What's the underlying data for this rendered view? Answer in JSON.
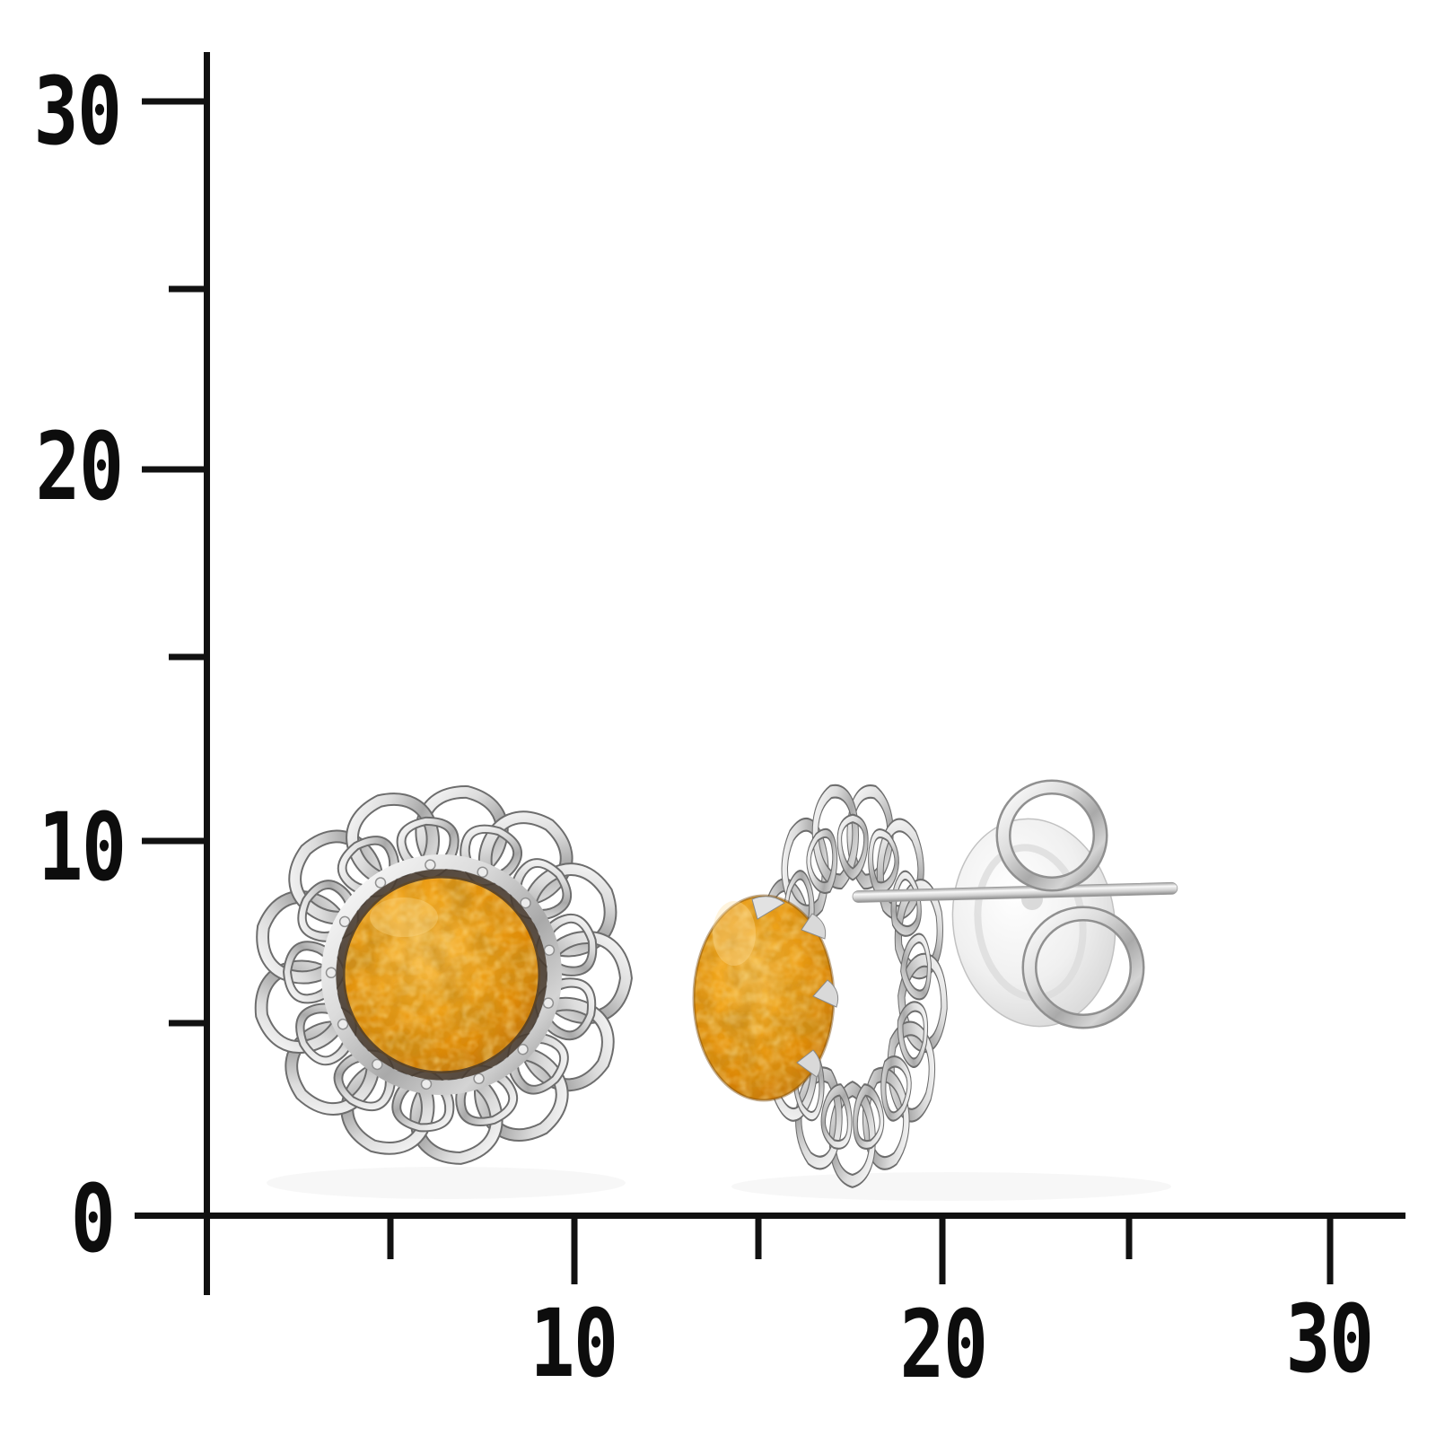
{
  "background_color": "#ffffff",
  "scale_ruler": {
    "axis_color": "#111111",
    "label_color": "#0d0d0d",
    "y_axis": {
      "labels": [
        "30",
        "20",
        "10",
        "0"
      ]
    },
    "x_axis": {
      "labels": [
        "10",
        "20",
        "30"
      ]
    }
  },
  "photo": {
    "description": "Pair of silver sunflower stud earrings with round mottled cognac-amber cabochons; left earring shown from the front, right earring shown from the side with straight ear post and butterfly clutch",
    "colors": {
      "silver_light": "#f4f4f4",
      "silver_mid": "#c7c7c7",
      "silver_dark": "#8a8a8a",
      "outline": "#6d6d6d",
      "amber_light": "#f8c255",
      "amber_base": "#ec9512",
      "amber_deep": "#c06a05",
      "amber_spot": "#8f4203",
      "bezel_dark": "#46382c"
    }
  }
}
